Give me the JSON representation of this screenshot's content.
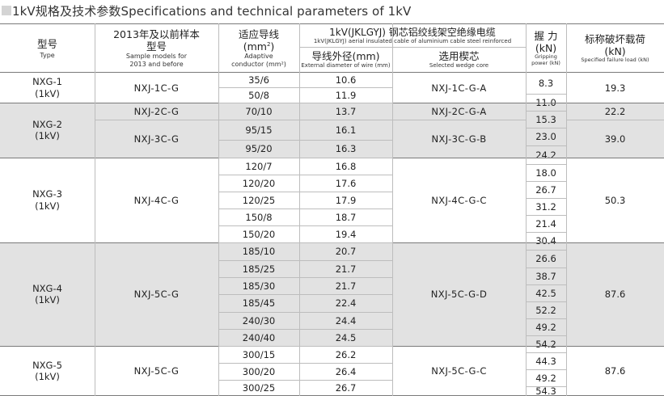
{
  "title": "1kV规格及技术参数Specifications and technical parameters of 1kV",
  "headers": {
    "type_cn": "型号",
    "type_en": "Type",
    "sample_cn_1": "2013年及以前样本",
    "sample_cn_2": "型号",
    "sample_en_1": "Sample models for",
    "sample_en_2": "2013 and before",
    "adaptive_cn": "适应导线",
    "adaptive_unit_open": "(mm",
    "adaptive_unit_sup": "2",
    "adaptive_unit_close": ")",
    "adaptive_en_1": "Adaptive",
    "adaptive_en_2": "conductor (mm²)",
    "group_cn": "1kV(JKLGYJ)  钢芯铝绞线架空绝缘电缆",
    "group_en": "1kV(JKLGYJ) aerial insulated cable of aluminium cable steel reinforced",
    "diam_cn": "导线外径(mm)",
    "diam_en": "External diameter of wire (mm)",
    "core_cn": "选用楔芯",
    "core_en": "Selected wedge core",
    "grip_cn": "握  力",
    "grip_unit": "(kN)",
    "grip_en_1": "Gripping",
    "grip_en_2": "power (kN)",
    "load_cn": "标称破坏载荷",
    "load_unit": "(kN)",
    "load_en": "Specified failure load (kN)"
  },
  "groups": [
    {
      "type": "NXG-1",
      "voltage": "(1kV)",
      "failure_load": "19.3"
    },
    {
      "type": "NXG-2",
      "voltage": "(1kV)",
      "failure_load": "22.2",
      "failure_load_b": "39.0"
    },
    {
      "type": "NXG-3",
      "voltage": "(1kV)",
      "failure_load": "50.3"
    },
    {
      "type": "NXG-4",
      "voltage": "(1kV)",
      "failure_load": "87.6"
    },
    {
      "type": "NXG-5",
      "voltage": "(1kV)",
      "failure_load": "87.6"
    }
  ],
  "samples": [
    "NXJ-1C-G",
    "NXJ-2C-G",
    "NXJ-3C-G",
    "NXJ-4C-G",
    "NXJ-5C-G",
    "NXJ-5C-G"
  ],
  "wedge_cores": [
    "NXJ-1C-G-A",
    "NXJ-2C-G-A",
    "NXJ-3C-G-B",
    "NXJ-4C-G-C",
    "NXJ-5C-G-D",
    "NXJ-5C-G-C"
  ],
  "rows": [
    {
      "conductor": "35/6",
      "diameter": "10.6",
      "grip": "8.3"
    },
    {
      "conductor": "50/8",
      "diameter": "11.9",
      "grip": "11.0"
    },
    {
      "conductor": "70/10",
      "diameter": "13.7",
      "grip": "15.3"
    },
    {
      "conductor": "95/15",
      "diameter": "16.1",
      "grip": "23.0"
    },
    {
      "conductor": "95/20",
      "diameter": "16.3",
      "grip": "24.2"
    },
    {
      "conductor": "120/7",
      "diameter": "16.8",
      "grip": "18.0"
    },
    {
      "conductor": "120/20",
      "diameter": "17.6",
      "grip": "26.7"
    },
    {
      "conductor": "120/25",
      "diameter": "17.9",
      "grip": "31.2"
    },
    {
      "conductor": "150/8",
      "diameter": "18.7",
      "grip": "21.4"
    },
    {
      "conductor": "150/20",
      "diameter": "19.4",
      "grip": "30.4"
    },
    {
      "conductor": "185/10",
      "diameter": "20.7",
      "grip": "26.6"
    },
    {
      "conductor": "185/25",
      "diameter": "21.7",
      "grip": "38.7"
    },
    {
      "conductor": "185/30",
      "diameter": "21.7",
      "grip": "42.5"
    },
    {
      "conductor": "185/45",
      "diameter": "22.4",
      "grip": "52.2"
    },
    {
      "conductor": "240/30",
      "diameter": "24.4",
      "grip": "49.2"
    },
    {
      "conductor": "240/40",
      "diameter": "24.5",
      "grip": "54.2"
    },
    {
      "conductor": "300/15",
      "diameter": "26.2",
      "grip": "44.3"
    },
    {
      "conductor": "300/20",
      "diameter": "26.4",
      "grip": "49.2"
    },
    {
      "conductor": "300/25",
      "diameter": "26.7",
      "grip": "54.3"
    }
  ]
}
